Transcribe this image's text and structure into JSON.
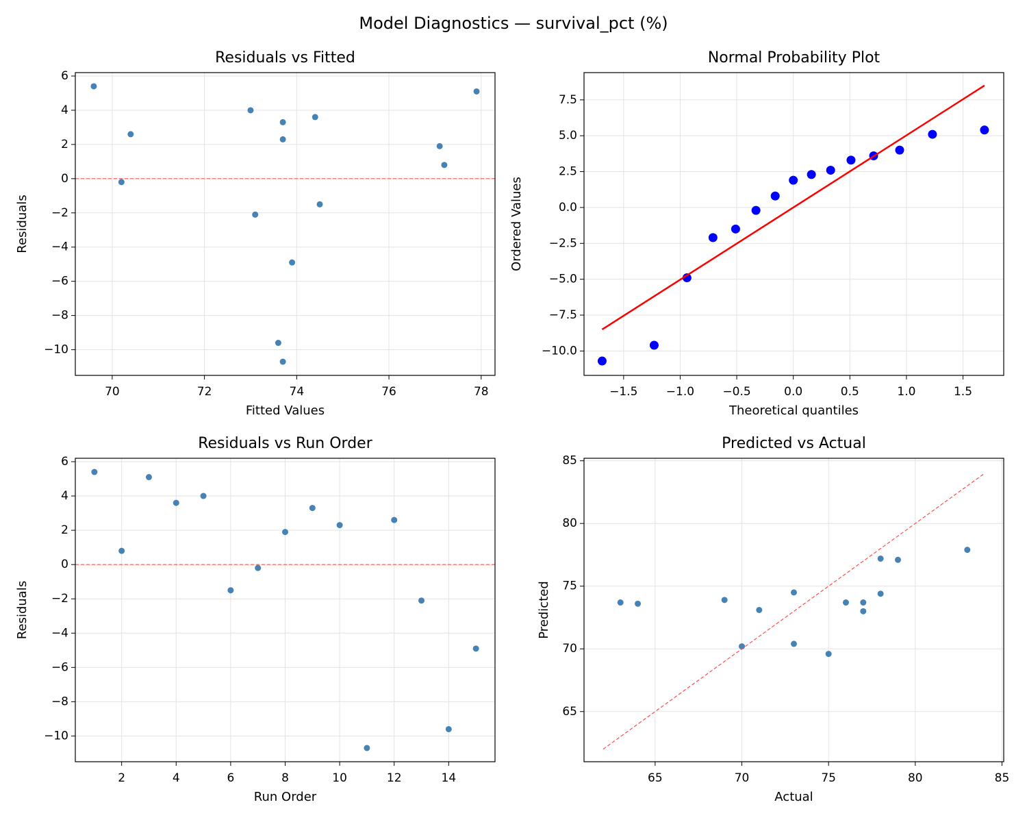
{
  "title": "Model Diagnostics — survival_pct (%)",
  "chart_data": [
    {
      "type": "scatter",
      "title": "Residuals vs Fitted",
      "xlabel": "Fitted Values",
      "ylabel": "Residuals",
      "x": [
        69.6,
        77.2,
        77.9,
        74.4,
        73.0,
        74.5,
        70.2,
        77.1,
        73.7,
        73.7,
        73.7,
        70.4,
        73.1,
        73.6,
        73.9
      ],
      "values": [
        5.4,
        0.8,
        5.1,
        3.6,
        4.0,
        -1.5,
        -0.2,
        1.9,
        3.3,
        2.3,
        -10.7,
        2.6,
        -2.1,
        -9.6,
        -4.9
      ],
      "color": "#4682b4",
      "hline": 0,
      "hline_color": "#ff4d4d",
      "grid": true,
      "xlim": [
        69.2,
        78.3
      ],
      "xticks": [
        70,
        72,
        74,
        76,
        78
      ],
      "ylim": [
        -11.5,
        6.2
      ],
      "yticks": [
        {
          "value": -10,
          "label": "−10"
        },
        {
          "value": -8,
          "label": "−8"
        },
        {
          "value": -6,
          "label": "−6"
        },
        {
          "value": -4,
          "label": "−4"
        },
        {
          "value": -2,
          "label": "−2"
        },
        0,
        2,
        4,
        6
      ]
    },
    {
      "type": "scatter",
      "title": "Normal Probability Plot",
      "xlabel": "Theoretical quantiles",
      "ylabel": "Ordered Values",
      "x": [
        -1.69,
        -1.23,
        -0.94,
        -0.71,
        -0.51,
        -0.33,
        -0.16,
        0,
        0.16,
        0.33,
        0.51,
        0.71,
        0.94,
        1.23,
        1.69
      ],
      "values": [
        -10.7,
        -9.6,
        -4.9,
        -2.1,
        -1.5,
        -0.2,
        0.8,
        1.9,
        2.3,
        2.6,
        3.3,
        3.6,
        4.0,
        5.1,
        5.4
      ],
      "color": "#0000ff",
      "grid": true,
      "fit_line": {
        "x": [
          -1.69,
          1.69
        ],
        "values": [
          -8.5,
          8.5
        ],
        "color": "#ff0000"
      },
      "xlim": [
        -1.85,
        1.86
      ],
      "xticks": [
        {
          "value": -1.5,
          "label": "−1.5"
        },
        {
          "value": -1.0,
          "label": "−1.0"
        },
        {
          "value": -0.5,
          "label": "−0.5"
        },
        {
          "value": 0,
          "label": "0.0"
        },
        {
          "value": 0.5,
          "label": "0.5"
        },
        {
          "value": 1.0,
          "label": "1.0"
        },
        {
          "value": 1.5,
          "label": "1.5"
        }
      ],
      "ylim": [
        -11.7,
        9.4
      ],
      "yticks": [
        {
          "value": -10,
          "label": "−10.0"
        },
        {
          "value": -7.5,
          "label": "−7.5"
        },
        {
          "value": -5,
          "label": "−5.0"
        },
        {
          "value": -2.5,
          "label": "−2.5"
        },
        {
          "value": 0,
          "label": "0.0"
        },
        {
          "value": 2.5,
          "label": "2.5"
        },
        {
          "value": 5,
          "label": "5.0"
        },
        {
          "value": 7.5,
          "label": "7.5"
        }
      ]
    },
    {
      "type": "scatter",
      "title": "Residuals vs Run Order",
      "xlabel": "Run Order",
      "ylabel": "Residuals",
      "x": [
        1,
        2,
        3,
        4,
        5,
        6,
        7,
        8,
        9,
        10,
        11,
        12,
        13,
        14,
        15
      ],
      "values": [
        5.4,
        0.8,
        5.1,
        3.6,
        4.0,
        -1.5,
        -0.2,
        1.9,
        3.3,
        2.3,
        -10.7,
        2.6,
        -2.1,
        -9.6,
        -4.9
      ],
      "color": "#4682b4",
      "hline": 0,
      "hline_color": "#ff4d4d",
      "grid": true,
      "xlim": [
        0.3,
        15.7
      ],
      "xticks": [
        2,
        4,
        6,
        8,
        10,
        12,
        14
      ],
      "ylim": [
        -11.5,
        6.2
      ],
      "yticks": [
        {
          "value": -10,
          "label": "−10"
        },
        {
          "value": -8,
          "label": "−8"
        },
        {
          "value": -6,
          "label": "−6"
        },
        {
          "value": -4,
          "label": "−4"
        },
        {
          "value": -2,
          "label": "−2"
        },
        0,
        2,
        4,
        6
      ]
    },
    {
      "type": "scatter",
      "title": "Predicted vs Actual",
      "xlabel": "Actual",
      "ylabel": "Predicted",
      "x": [
        75,
        78,
        83,
        78,
        77,
        73,
        70,
        79,
        77,
        76,
        63,
        73,
        71,
        64,
        69
      ],
      "values": [
        69.6,
        77.2,
        77.9,
        74.4,
        73.0,
        74.5,
        70.2,
        77.1,
        73.7,
        73.7,
        73.7,
        70.4,
        73.1,
        73.6,
        73.9
      ],
      "color": "#4682b4",
      "grid": true,
      "reference_line": {
        "x": [
          62,
          84
        ],
        "values": [
          62,
          84
        ],
        "color": "#ff4d4d"
      },
      "xlim": [
        60.9,
        85.1
      ],
      "xticks": [
        65,
        70,
        75,
        80,
        85
      ],
      "ylim": [
        61,
        85.2
      ],
      "yticks": [
        65,
        70,
        75,
        80,
        85
      ]
    }
  ]
}
